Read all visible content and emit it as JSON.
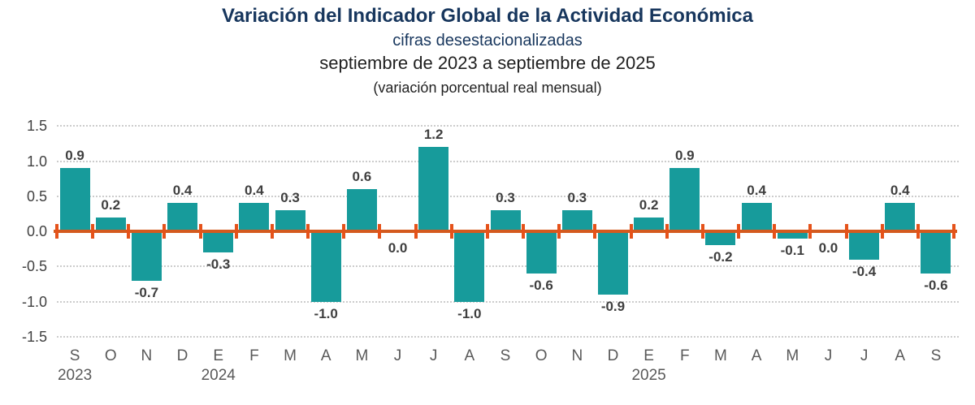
{
  "header": {
    "title": "Variación del Indicador Global de la Actividad Económica",
    "subtitle_series": "cifras desestacionalizadas",
    "subtitle_period": "septiembre de 2023 a septiembre de 2025",
    "subtitle_unit": "(variación porcentual real mensual)"
  },
  "chart_data": {
    "type": "bar",
    "title": "Variación del Indicador Global de la Actividad Económica",
    "subtitle": "cifras desestacionalizadas, septiembre de 2023 a septiembre de 2025 (variación porcentual real mensual)",
    "categories": [
      "S",
      "O",
      "N",
      "D",
      "E",
      "F",
      "M",
      "A",
      "M",
      "J",
      "J",
      "A",
      "S",
      "O",
      "N",
      "D",
      "E",
      "F",
      "M",
      "A",
      "M",
      "J",
      "J",
      "A",
      "S"
    ],
    "values": [
      0.9,
      0.2,
      -0.7,
      0.4,
      -0.3,
      0.4,
      0.3,
      -1.0,
      0.6,
      0.0,
      1.2,
      -1.0,
      0.3,
      -0.6,
      0.3,
      -0.9,
      0.2,
      0.9,
      -0.2,
      0.4,
      -0.1,
      0.0,
      -0.4,
      0.4,
      -0.6
    ],
    "value_labels": [
      "0.9",
      "0.2",
      "-0.7",
      "0.4",
      "-0.3",
      "0.4",
      "0.3",
      "-1.0",
      "0.6",
      "0.0",
      "1.2",
      "-1.0",
      "0.3",
      "-0.6",
      "0.3",
      "-0.9",
      "0.2",
      "0.9",
      "-0.2",
      "0.4",
      "-0.1",
      "0.0",
      "-0.4",
      "0.4",
      "-0.6"
    ],
    "year_labels": [
      {
        "index": 0,
        "label": "2023"
      },
      {
        "index": 4,
        "label": "2024"
      },
      {
        "index": 16,
        "label": "2025"
      }
    ],
    "y_ticks": [
      {
        "value": 1.5,
        "label": "1.5"
      },
      {
        "value": 1.0,
        "label": "1.0"
      },
      {
        "value": 0.5,
        "label": "0.5"
      },
      {
        "value": 0.0,
        "label": "0.0"
      },
      {
        "value": -0.5,
        "label": "-0.5"
      },
      {
        "value": -1.0,
        "label": "-1.0"
      },
      {
        "value": -1.5,
        "label": "-1.5"
      }
    ],
    "ylim": [
      -1.5,
      1.5
    ],
    "grid": "dotted horizontal",
    "legend": "none",
    "colors": {
      "bar": "#179B9B",
      "axis_line": "#D45A1E",
      "axis_tick": "#E5521A",
      "grid": "#CCCCCC",
      "value_label": "#3F3F3F",
      "month_label": "#595959",
      "y_label": "#404040",
      "title": "#17365D"
    }
  }
}
